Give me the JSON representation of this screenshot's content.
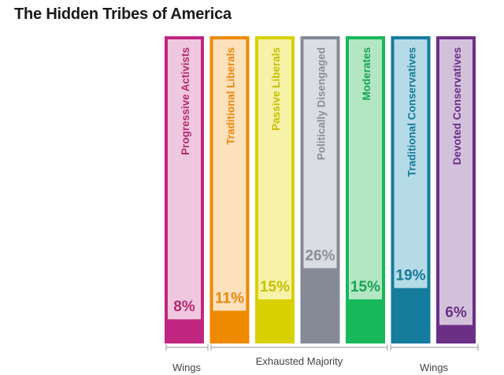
{
  "title": "The Hidden Tribes of America",
  "chart_data": {
    "type": "bar",
    "title": "The Hidden Tribes of America",
    "unit": "%",
    "ylim": [
      0,
      100
    ],
    "categories": [
      "Progressive Activists",
      "Traditional Liberals",
      "Passive Liberals",
      "Politically Disengaged",
      "Moderates",
      "Traditional Conservatives",
      "Devoted Conservatives"
    ],
    "values": [
      8,
      11,
      15,
      26,
      15,
      19,
      6
    ],
    "value_labels": [
      "8%",
      "11%",
      "15%",
      "26%",
      "15%",
      "19%",
      "6%"
    ],
    "colors": {
      "Progressive Activists": {
        "fill": "#c0267f",
        "light": "#efc8df",
        "text": "#b8286f"
      },
      "Traditional Liberals": {
        "fill": "#ef8a00",
        "light": "#fde1bd",
        "text": "#ec8708"
      },
      "Passive Liberals": {
        "fill": "#d8d000",
        "light": "#f6f2a8",
        "text": "#c7c000"
      },
      "Politically Disengaged": {
        "fill": "#848a96",
        "light": "#dadde2",
        "text": "#8a8f9a"
      },
      "Moderates": {
        "fill": "#16b85a",
        "light": "#b3e6c3",
        "text": "#16a552"
      },
      "Traditional Conservatives": {
        "fill": "#157c9e",
        "light": "#b4dbe6",
        "text": "#157a9a"
      },
      "Devoted Conservatives": {
        "fill": "#6b2f86",
        "light": "#d3c1db",
        "text": "#6b2f86"
      }
    },
    "groups": [
      {
        "label": "Wings",
        "categories": [
          "Progressive Activists"
        ]
      },
      {
        "label": "Exhausted Majority",
        "categories": [
          "Traditional Liberals",
          "Passive Liberals",
          "Politically Disengaged",
          "Moderates"
        ]
      },
      {
        "label": "Wings",
        "categories": [
          "Traditional Conservatives",
          "Devoted Conservatives"
        ]
      }
    ]
  }
}
